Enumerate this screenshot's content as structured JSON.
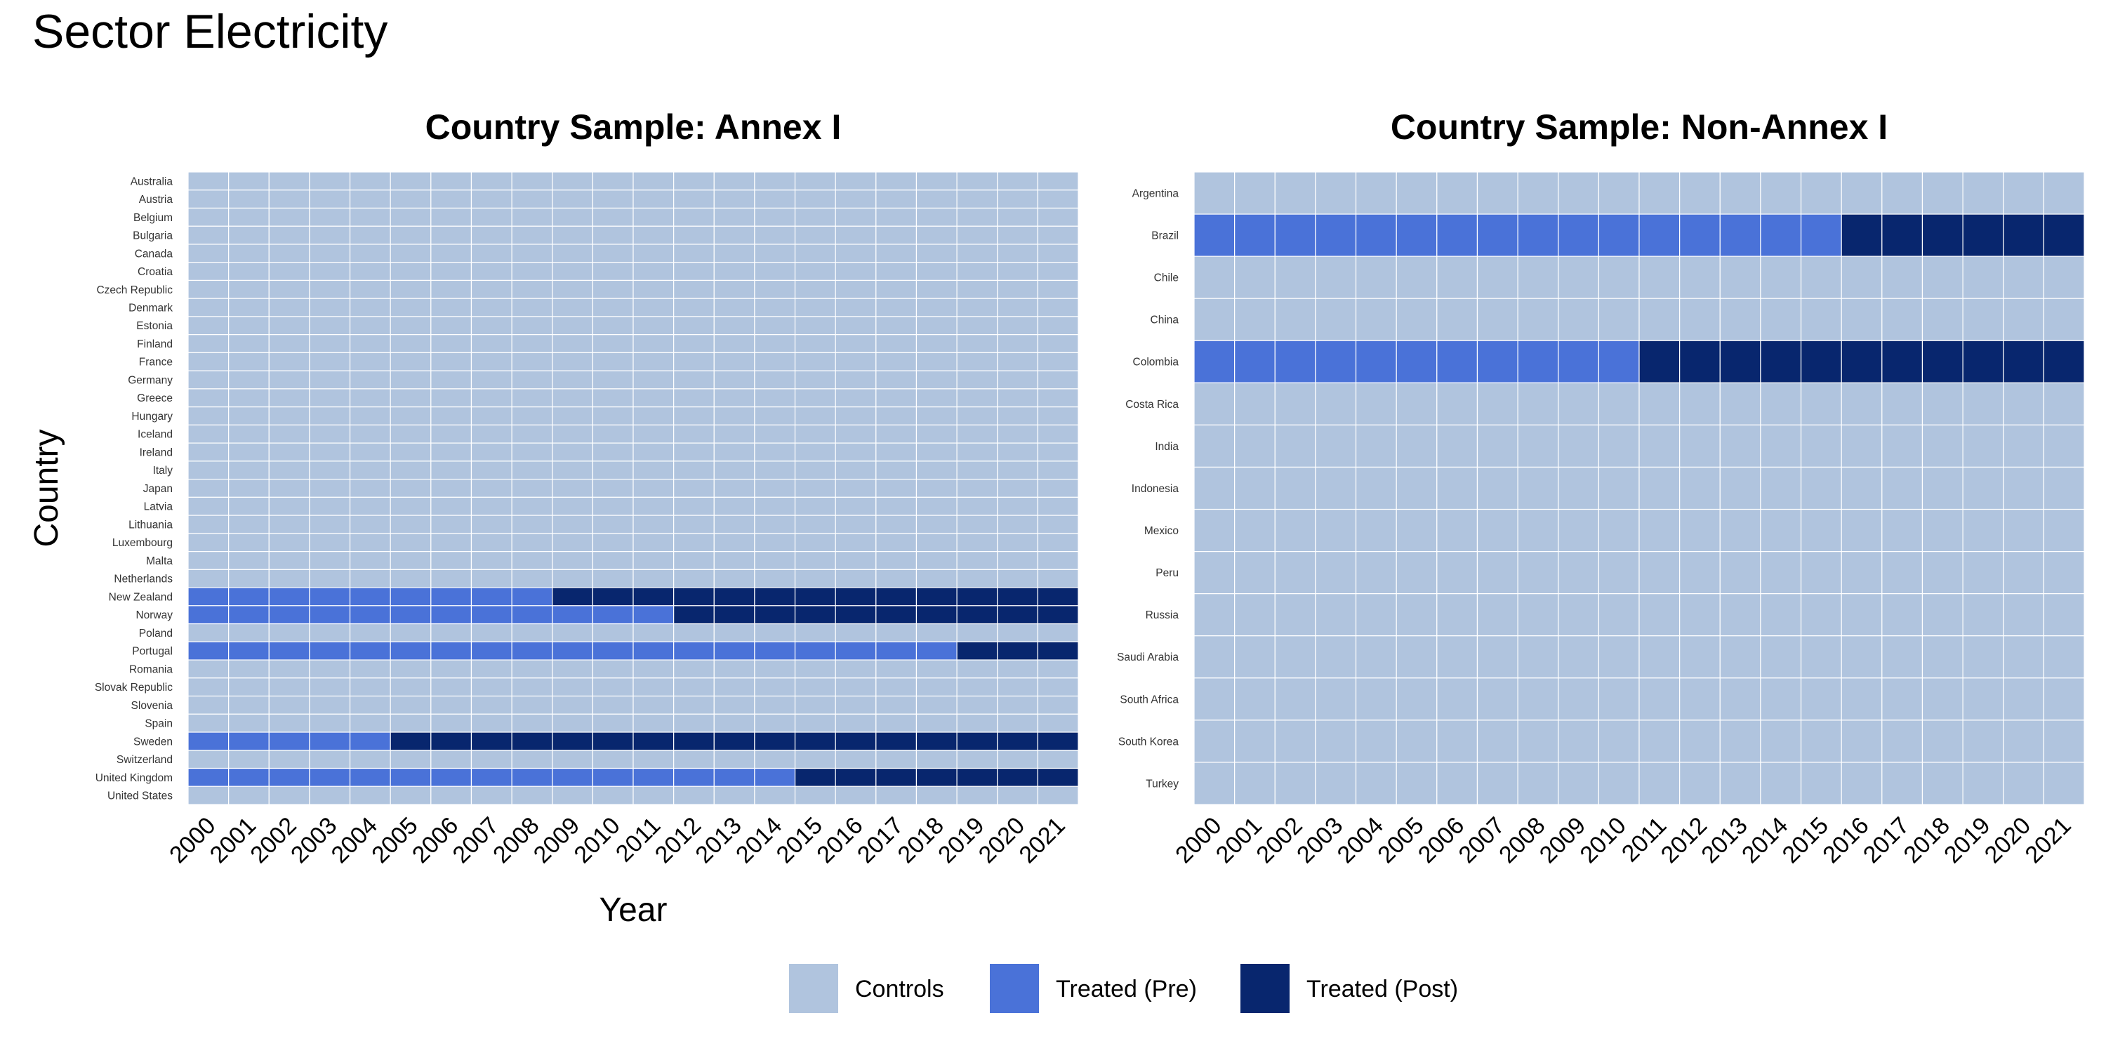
{
  "title": "Sector Electricity",
  "legend_entries": [
    "Controls",
    "Treated (Pre)",
    "Treated (Post)"
  ],
  "colors": {
    "Controls": "#b0c4de",
    "Treated (Pre)": "#4a72d8",
    "Treated (Post)": "#08266e",
    "grid": "#ffffff"
  },
  "chart_data": [
    {
      "type": "heatmap",
      "title": "Country Sample: Annex I",
      "xlabel": "Year",
      "ylabel": "Country",
      "x": [
        "2000",
        "2001",
        "2002",
        "2003",
        "2004",
        "2005",
        "2006",
        "2007",
        "2008",
        "2009",
        "2010",
        "2011",
        "2012",
        "2013",
        "2014",
        "2015",
        "2016",
        "2017",
        "2018",
        "2019",
        "2020",
        "2021"
      ],
      "y": [
        "Australia",
        "Austria",
        "Belgium",
        "Bulgaria",
        "Canada",
        "Croatia",
        "Czech Republic",
        "Denmark",
        "Estonia",
        "Finland",
        "France",
        "Germany",
        "Greece",
        "Hungary",
        "Iceland",
        "Ireland",
        "Italy",
        "Japan",
        "Latvia",
        "Lithuania",
        "Luxembourg",
        "Malta",
        "Netherlands",
        "New Zealand",
        "Norway",
        "Poland",
        "Portugal",
        "Romania",
        "Slovak Republic",
        "Slovenia",
        "Spain",
        "Sweden",
        "Switzerland",
        "United Kingdom",
        "United States"
      ],
      "categories": [
        "Controls",
        "Treated (Pre)",
        "Treated (Post)"
      ],
      "treated": [
        {
          "country": "New Zealand",
          "treatment_year": 2009
        },
        {
          "country": "Norway",
          "treatment_year": 2012
        },
        {
          "country": "Portugal",
          "treatment_year": 2019
        },
        {
          "country": "Sweden",
          "treatment_year": 2005
        },
        {
          "country": "United Kingdom",
          "treatment_year": 2015
        }
      ]
    },
    {
      "type": "heatmap",
      "title": "Country Sample: Non-Annex I",
      "xlabel": "",
      "ylabel": "",
      "x": [
        "2000",
        "2001",
        "2002",
        "2003",
        "2004",
        "2005",
        "2006",
        "2007",
        "2008",
        "2009",
        "2010",
        "2011",
        "2012",
        "2013",
        "2014",
        "2015",
        "2016",
        "2017",
        "2018",
        "2019",
        "2020",
        "2021"
      ],
      "y": [
        "Argentina",
        "Brazil",
        "Chile",
        "China",
        "Colombia",
        "Costa Rica",
        "India",
        "Indonesia",
        "Mexico",
        "Peru",
        "Russia",
        "Saudi Arabia",
        "South Africa",
        "South Korea",
        "Turkey"
      ],
      "categories": [
        "Controls",
        "Treated (Pre)",
        "Treated (Post)"
      ],
      "treated": [
        {
          "country": "Brazil",
          "treatment_year": 2016
        },
        {
          "country": "Colombia",
          "treatment_year": 2011
        }
      ]
    }
  ]
}
